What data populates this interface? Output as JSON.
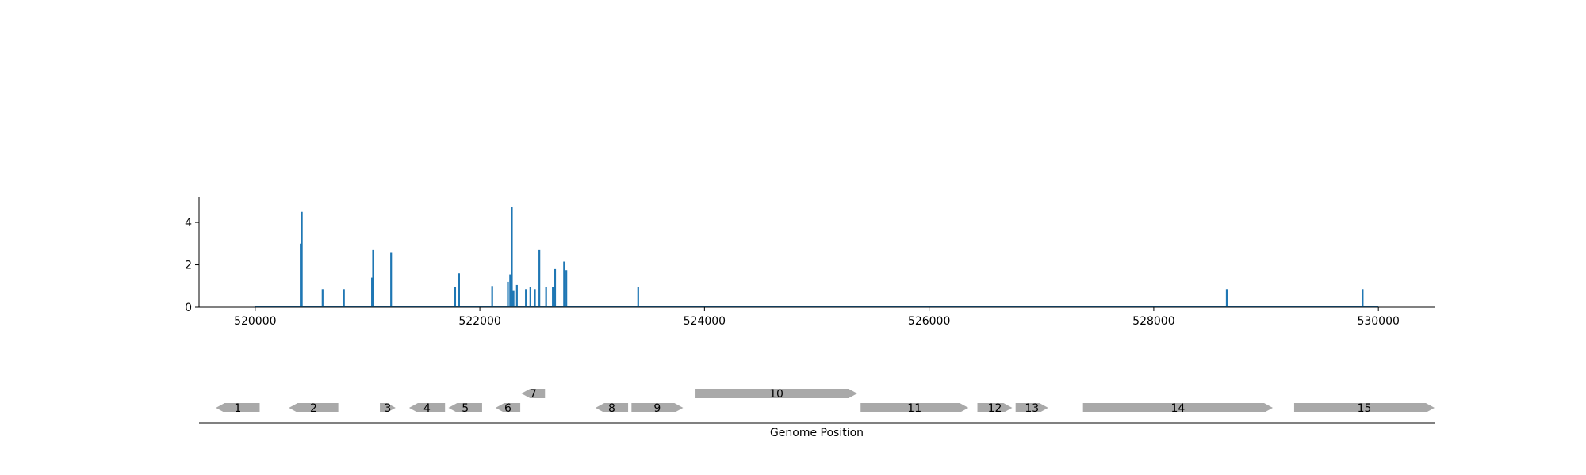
{
  "chart_data": [
    {
      "type": "bar",
      "title": "",
      "xlabel": "",
      "ylabel": "",
      "xlim": [
        519500,
        530500
      ],
      "ylim": [
        0,
        5.2
      ],
      "x_ticks": [
        520000,
        522000,
        524000,
        526000,
        528000,
        530000
      ],
      "x_tick_labels": [
        "520000",
        "522000",
        "524000",
        "526000",
        "528000",
        "530000"
      ],
      "y_ticks": [
        0,
        2,
        4
      ],
      "y_tick_labels": [
        "0",
        "2",
        "4"
      ],
      "baseline_range": [
        520000,
        530000
      ],
      "color": "#1f77b4",
      "grid": false,
      "bars": [
        {
          "x": 520405,
          "y": 3.0
        },
        {
          "x": 520415,
          "y": 4.5
        },
        {
          "x": 520600,
          "y": 0.85
        },
        {
          "x": 520790,
          "y": 0.85
        },
        {
          "x": 521040,
          "y": 1.4
        },
        {
          "x": 521050,
          "y": 2.7
        },
        {
          "x": 521210,
          "y": 2.6
        },
        {
          "x": 521780,
          "y": 0.95
        },
        {
          "x": 521815,
          "y": 1.6
        },
        {
          "x": 522110,
          "y": 1.0
        },
        {
          "x": 522250,
          "y": 1.2
        },
        {
          "x": 522270,
          "y": 1.55
        },
        {
          "x": 522285,
          "y": 4.75
        },
        {
          "x": 522300,
          "y": 0.8
        },
        {
          "x": 522330,
          "y": 1.05
        },
        {
          "x": 522410,
          "y": 0.85
        },
        {
          "x": 522450,
          "y": 0.95
        },
        {
          "x": 522490,
          "y": 0.85
        },
        {
          "x": 522530,
          "y": 2.7
        },
        {
          "x": 522590,
          "y": 0.95
        },
        {
          "x": 522650,
          "y": 0.95
        },
        {
          "x": 522670,
          "y": 1.8
        },
        {
          "x": 522750,
          "y": 2.15
        },
        {
          "x": 522770,
          "y": 1.75
        },
        {
          "x": 523410,
          "y": 0.95
        },
        {
          "x": 528650,
          "y": 0.85
        },
        {
          "x": 529860,
          "y": 0.85
        }
      ]
    },
    {
      "type": "gene-map",
      "xlabel": "Genome Position",
      "color": "#a9a9a9",
      "genes": [
        {
          "label": "1",
          "start": 519650,
          "end": 520040,
          "strand": "-",
          "track": 0
        },
        {
          "label": "2",
          "start": 520300,
          "end": 520740,
          "strand": "-",
          "track": 0
        },
        {
          "label": "3",
          "start": 521110,
          "end": 521250,
          "strand": "+",
          "track": 0
        },
        {
          "label": "4",
          "start": 521370,
          "end": 521690,
          "strand": "-",
          "track": 0
        },
        {
          "label": "5",
          "start": 521720,
          "end": 522020,
          "strand": "-",
          "track": 0
        },
        {
          "label": "6",
          "start": 522140,
          "end": 522360,
          "strand": "-",
          "track": 0
        },
        {
          "label": "7",
          "start": 522370,
          "end": 522580,
          "strand": "-",
          "track": 1
        },
        {
          "label": "8",
          "start": 523030,
          "end": 523320,
          "strand": "-",
          "track": 0
        },
        {
          "label": "9",
          "start": 523350,
          "end": 523810,
          "strand": "+",
          "track": 0
        },
        {
          "label": "10",
          "start": 523920,
          "end": 525360,
          "strand": "+",
          "track": 1
        },
        {
          "label": "11",
          "start": 525390,
          "end": 526350,
          "strand": "+",
          "track": 0
        },
        {
          "label": "12",
          "start": 526430,
          "end": 526740,
          "strand": "+",
          "track": 0
        },
        {
          "label": "13",
          "start": 526770,
          "end": 527060,
          "strand": "+",
          "track": 0
        },
        {
          "label": "14",
          "start": 527370,
          "end": 529060,
          "strand": "+",
          "track": 0
        },
        {
          "label": "15",
          "start": 529250,
          "end": 530500,
          "strand": "+",
          "track": 0
        }
      ]
    }
  ]
}
